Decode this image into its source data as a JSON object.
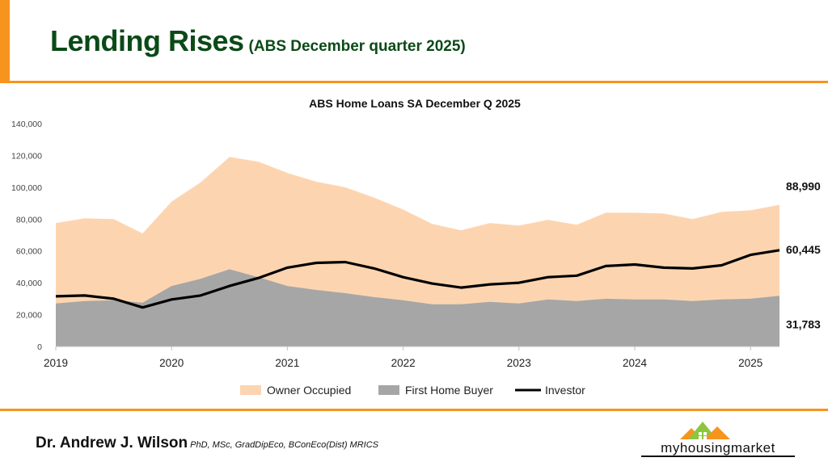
{
  "slide": {
    "title": "Lending Rises",
    "subtitle": "(ABS December quarter 2025)",
    "author_name": "Dr. Andrew J. Wilson",
    "author_credentials": "PhD, MSc, GradDipEco, BConEco(Dist) MRICS",
    "logo_text": "myhousingmarket",
    "colors": {
      "accent": "#f7941d",
      "title": "#0b4a17"
    }
  },
  "chart_data": {
    "type": "area",
    "title": "ABS Home Loans SA December Q 2025",
    "x": [
      "2019 Q1",
      "2019 Q2",
      "2019 Q3",
      "2019 Q4",
      "2020 Q1",
      "2020 Q2",
      "2020 Q3",
      "2020 Q4",
      "2021 Q1",
      "2021 Q2",
      "2021 Q3",
      "2021 Q4",
      "2022 Q1",
      "2022 Q2",
      "2022 Q3",
      "2022 Q4",
      "2023 Q1",
      "2023 Q2",
      "2023 Q3",
      "2023 Q4",
      "2024 Q1",
      "2024 Q2",
      "2024 Q3",
      "2024 Q4",
      "2025 Q1",
      "2025 Q2"
    ],
    "x_tick_labels": [
      "2019",
      "2020",
      "2021",
      "2022",
      "2023",
      "2024",
      "2025"
    ],
    "ylim": [
      0,
      140000
    ],
    "y_ticks": [
      "0",
      "20,000",
      "40,000",
      "60,000",
      "80,000",
      "100,000",
      "120,000",
      "140,000"
    ],
    "y_tick_values": [
      0,
      20000,
      40000,
      60000,
      80000,
      100000,
      120000,
      140000
    ],
    "series": [
      {
        "name": "Owner Occupied",
        "kind": "area",
        "color": "#fcd5b0",
        "values": [
          77500,
          80500,
          80000,
          71000,
          91000,
          103000,
          119000,
          116000,
          109000,
          103500,
          100000,
          93500,
          86000,
          77000,
          73000,
          77500,
          76000,
          79500,
          76500,
          84000,
          84000,
          83500,
          80000,
          84500,
          85500,
          88990
        ]
      },
      {
        "name": "First Home Buyer",
        "kind": "area",
        "color": "#a6a6a6",
        "values": [
          27000,
          28500,
          29000,
          27500,
          38000,
          42500,
          48500,
          43500,
          38000,
          35500,
          33500,
          31000,
          29000,
          26500,
          26500,
          28000,
          27000,
          29500,
          28500,
          30000,
          29500,
          29500,
          28500,
          29500,
          30000,
          31783
        ]
      },
      {
        "name": "Investor",
        "kind": "line",
        "color": "#000000",
        "values": [
          31500,
          32000,
          30000,
          24500,
          29500,
          32000,
          38000,
          43000,
          49500,
          52500,
          53000,
          49000,
          43500,
          39500,
          37000,
          39000,
          40000,
          43500,
          44500,
          50500,
          51500,
          49500,
          49000,
          51000,
          57500,
          60445
        ]
      }
    ],
    "end_labels": [
      "88,990",
      "60,445",
      "31,783"
    ],
    "legend": {
      "placement": "bottom",
      "entries": [
        "Owner Occupied",
        "First Home Buyer",
        "Investor"
      ]
    },
    "grid": false
  }
}
